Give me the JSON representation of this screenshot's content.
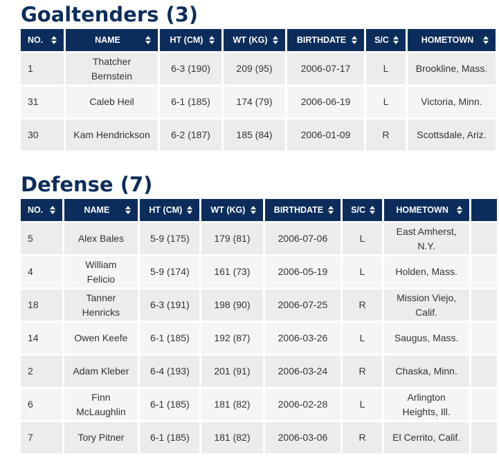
{
  "goalies": {
    "title": "Goaltenders (3)",
    "columns": [
      "NO.",
      "NAME",
      "HT (CM)",
      "WT (KG)",
      "BIRTHDATE",
      "S/C",
      "HOMETOWN"
    ],
    "rows": [
      [
        "1",
        "Thatcher Bernstein",
        "6-3 (190)",
        "209 (95)",
        "2006-07-17",
        "L",
        "Brookline, Mass."
      ],
      [
        "31",
        "Caleb Heil",
        "6-1 (185)",
        "174 (79)",
        "2006-06-19",
        "L",
        "Victoria, Minn."
      ],
      [
        "30",
        "Kam Hendrickson",
        "6-2 (187)",
        "185 (84)",
        "2006-01-09",
        "R",
        "Scottsdale, Ariz."
      ]
    ]
  },
  "defense": {
    "title": "Defense (7)",
    "columns": [
      "NO.",
      "NAME",
      "HT (CM)",
      "WT (KG)",
      "BIRTHDATE",
      "S/C",
      "HOMETOWN"
    ],
    "rows": [
      [
        "5",
        "Alex Bales",
        "5-9 (175)",
        "179 (81)",
        "2006-07-06",
        "L",
        "East Amherst, N.Y."
      ],
      [
        "4",
        "William Felicio",
        "5-9 (174)",
        "161 (73)",
        "2006-05-19",
        "L",
        "Holden, Mass."
      ],
      [
        "18",
        "Tanner Henricks",
        "6-3 (191)",
        "198 (90)",
        "2006-07-25",
        "R",
        "Mission Viejo, Calif."
      ],
      [
        "14",
        "Owen Keefe",
        "6-1 (185)",
        "192 (87)",
        "2006-03-26",
        "L",
        "Saugus, Mass."
      ],
      [
        "2",
        "Adam Kleber",
        "6-4 (193)",
        "201 (91)",
        "2006-03-24",
        "R",
        "Chaska, Minn."
      ],
      [
        "6",
        "Finn McLaughlin",
        "6-1 (185)",
        "181 (82)",
        "2006-02-28",
        "L",
        "Arlington Heights, Ill."
      ],
      [
        "7",
        "Tory Pitner",
        "6-1 (185)",
        "181 (82)",
        "2006-03-06",
        "R",
        "El Cerrito, Calif."
      ]
    ]
  }
}
